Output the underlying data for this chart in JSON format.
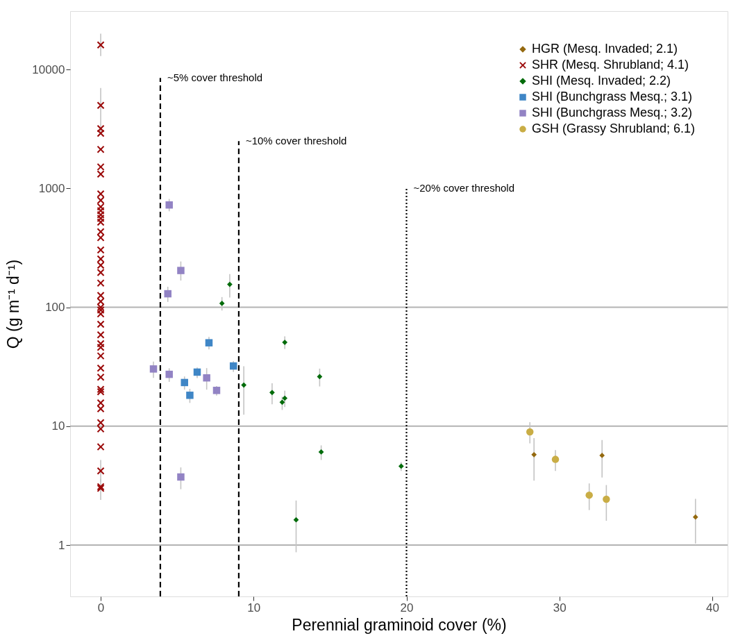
{
  "chart_data": {
    "type": "scatter",
    "xlabel": "Perennial graminoid cover (%)",
    "ylabel": "Q (g m⁻¹ d⁻¹)",
    "log": "y",
    "xlim": [
      -2,
      41
    ],
    "ylim": [
      0.37,
      31000
    ],
    "xticks": [
      0,
      10,
      20,
      30,
      40
    ],
    "yticks": [
      1,
      10,
      100,
      1000,
      10000
    ],
    "grid": false,
    "legend": "top right",
    "series": [
      {
        "name": "HGR (Mesq. Invaded; 2.1)",
        "color": "#94690f",
        "marker": "diamond",
        "x": [
          28.34,
          32.79,
          38.9
        ],
        "values": [
          5.76,
          5.68,
          1.72
        ],
        "errors": [
          [
            3.48,
            7.95
          ],
          [
            3.7,
            7.66
          ],
          [
            1.03,
            2.45
          ]
        ]
      },
      {
        "name": "SHR (Mesq. Shrubland; 4.1)",
        "color": "#9b0a0a",
        "marker": "cross",
        "x": [
          0,
          0,
          0,
          0,
          0,
          0,
          0,
          0,
          0,
          0,
          0,
          0,
          0,
          0,
          0,
          0,
          0,
          0,
          0,
          0,
          0,
          0,
          0,
          0,
          0,
          0,
          0,
          0,
          0,
          0,
          0,
          0,
          0,
          0,
          0,
          0,
          0,
          0,
          0,
          0,
          0,
          0,
          0
        ],
        "values": [
          16100,
          4990,
          3180,
          2910,
          2130,
          1517,
          1318,
          900,
          795,
          700,
          650,
          600,
          560,
          520,
          432,
          385,
          304,
          255,
          226,
          196,
          160,
          126,
          112,
          100,
          95,
          88,
          72,
          58.7,
          49.4,
          46,
          39,
          30.8,
          25.8,
          20.4,
          19.5,
          15.7,
          14,
          10.7,
          9.5,
          6.7,
          4.2,
          3.0,
          3.1
        ],
        "errors": [
          [
            13000,
            20000
          ],
          [
            3000,
            7000
          ],
          null,
          null,
          null,
          null,
          null,
          null,
          null,
          null,
          null,
          null,
          null,
          null,
          null,
          null,
          null,
          null,
          null,
          null,
          null,
          null,
          null,
          null,
          null,
          null,
          null,
          null,
          null,
          null,
          null,
          null,
          null,
          null,
          null,
          null,
          null,
          null,
          null,
          null,
          [
            3.4,
            5.2
          ],
          [
            2.4,
            3.6
          ],
          null
        ]
      },
      {
        "name": "SHI (Mesq. Invaded; 2.2)",
        "color": "#006b0a",
        "marker": "diamond",
        "x": [
          7.93,
          8.44,
          12.04,
          14.32,
          9.36,
          11.21,
          12.04,
          11.87,
          14.42,
          19.65,
          12.78
        ],
        "values": [
          108,
          156,
          50.7,
          26.1,
          22.2,
          19.2,
          17.2,
          15.9,
          6.07,
          4.61,
          1.63
        ],
        "errors": [
          [
            94,
            122
          ],
          [
            121,
            190
          ],
          [
            44.6,
            57
          ],
          [
            21.6,
            30.5
          ],
          [
            12.5,
            31.9
          ],
          [
            15.3,
            23
          ],
          [
            14.5,
            19.9
          ],
          [
            13.7,
            17.7
          ],
          [
            5.2,
            6.9
          ],
          [
            4.2,
            5.0
          ],
          [
            0.87,
            2.37
          ]
        ]
      },
      {
        "name": "SHI (Bunchgrass Mesq.; 3.1)",
        "color": "#3f86c6",
        "marker": "square",
        "x": [
          7.08,
          6.31,
          5.48,
          5.83,
          8.68
        ],
        "values": [
          50.3,
          28.5,
          23.3,
          18.2,
          32.1
        ],
        "errors": [
          [
            44.3,
            56.3
          ],
          [
            25.4,
            31.2
          ],
          [
            20.3,
            26.2
          ],
          [
            15.7,
            20.6
          ],
          [
            28.6,
            35.3
          ]
        ]
      },
      {
        "name": "SHI (Bunchgrass Mesq.; 3.2)",
        "color": "#9283c4",
        "marker": "square",
        "x": [
          4.48,
          5.24,
          4.39,
          3.45,
          4.48,
          6.93,
          7.58,
          5.24
        ],
        "values": [
          726,
          204,
          130,
          30.3,
          27.3,
          25.5,
          20.0,
          3.74
        ],
        "errors": [
          [
            642,
            815
          ],
          [
            168,
            243
          ],
          [
            111,
            149
          ],
          [
            25.5,
            35
          ],
          [
            23.6,
            30.7
          ],
          [
            20.3,
            30.8
          ],
          [
            18.1,
            21.8
          ],
          [
            2.95,
            4.5
          ]
        ]
      },
      {
        "name": "GSH (Grassy Shrubland; 6.1)",
        "color": "#c9ad45",
        "marker": "circle",
        "x": [
          28.07,
          29.74,
          31.95,
          33.07
        ],
        "values": [
          8.96,
          5.26,
          2.63,
          2.43
        ],
        "errors": [
          [
            7.17,
            10.8
          ],
          [
            4.2,
            6.3
          ],
          [
            1.97,
            3.3
          ],
          [
            1.6,
            3.2
          ]
        ]
      },
      {
        "type": "line",
        "color": "#000000",
        "line_style": "dashed",
        "x": [
          3.9,
          3.9
        ],
        "values": [
          0.37,
          8500
        ]
      },
      {
        "type": "line",
        "color": "#000000",
        "line_style": "dashed",
        "x": [
          9.03,
          9.03
        ],
        "values": [
          0.37,
          2500
        ]
      },
      {
        "type": "line",
        "color": "#000000",
        "line_style": "dotted",
        "x": [
          20,
          20
        ],
        "values": [
          0.37,
          1000
        ]
      }
    ],
    "ref_lines": [
      {
        "axis": "y",
        "value": 1,
        "color": "#b3b3b3"
      },
      {
        "axis": "y",
        "value": 10,
        "color": "#b3b3b3"
      },
      {
        "axis": "y",
        "value": 100,
        "color": "#b3b3b3"
      }
    ],
    "annotations": [
      {
        "text": "~5% cover threshold",
        "x": 3.9,
        "y": 8500
      },
      {
        "text": "~10% cover threshold",
        "x": 9.03,
        "y": 2500
      },
      {
        "text": "~20% cover threshold",
        "x": 20,
        "y": 1000
      }
    ]
  }
}
